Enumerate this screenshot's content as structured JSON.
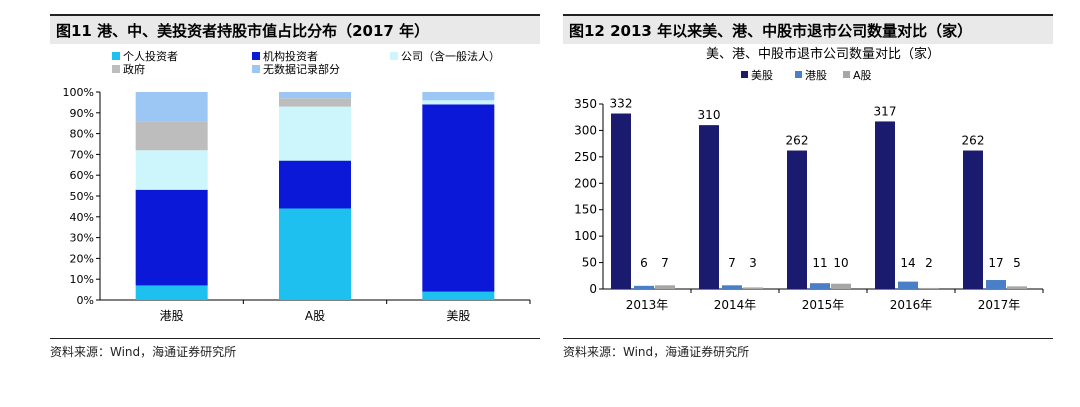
{
  "panel1": {
    "title": "图11 港、中、美投资者持股市值占比分布（2017 年）",
    "source": "资料来源：Wind，海通证券研究所"
  },
  "panel2": {
    "title": "图12 2013 年以来美、港、中股市退市公司数量对比（家）",
    "source": "资料来源：Wind，海通证券研究所"
  },
  "chart_data": [
    {
      "type": "bar",
      "stacked": true,
      "title": "",
      "categories": [
        "港股",
        "A股",
        "美股"
      ],
      "ylim": [
        0,
        100
      ],
      "yticks": [
        "0%",
        "10%",
        "20%",
        "30%",
        "40%",
        "50%",
        "60%",
        "70%",
        "80%",
        "90%",
        "100%"
      ],
      "legend_position": "top",
      "series": [
        {
          "name": "个人投资者",
          "color": "#1ec0f0",
          "values": [
            7,
            44,
            4
          ]
        },
        {
          "name": "机构投资者",
          "color": "#0b18d8",
          "values": [
            46,
            23,
            90
          ]
        },
        {
          "name": "公司（含一般法人）",
          "color": "#ccf6fb",
          "values": [
            19,
            26,
            2
          ]
        },
        {
          "name": "政府",
          "color": "#bdbdbd",
          "values": [
            14,
            4,
            0
          ]
        },
        {
          "name": "无数据记录部分",
          "color": "#9cc7f4",
          "values": [
            14,
            3,
            4
          ]
        }
      ]
    },
    {
      "type": "bar",
      "title": "美、港、中股市退市公司数量对比（家）",
      "categories": [
        "2013年",
        "2014年",
        "2015年",
        "2016年",
        "2017年"
      ],
      "ylim": [
        0,
        350
      ],
      "yticks": [
        "0",
        "50",
        "100",
        "150",
        "200",
        "250",
        "300",
        "350"
      ],
      "legend_position": "top",
      "series": [
        {
          "name": "美股",
          "color": "#1a1a6e",
          "values": [
            332,
            310,
            262,
            317,
            262
          ]
        },
        {
          "name": "港股",
          "color": "#4a7fc8",
          "values": [
            6,
            7,
            11,
            14,
            17
          ]
        },
        {
          "name": "A股",
          "color": "#a6a6a6",
          "values": [
            7,
            3,
            10,
            2,
            5
          ]
        }
      ],
      "data_labels": [
        [
          "332",
          "6",
          "7"
        ],
        [
          "310",
          "7",
          "3"
        ],
        [
          "262",
          "11",
          "10"
        ],
        [
          "317",
          "14",
          "2"
        ],
        [
          "262",
          "17",
          "5"
        ]
      ]
    }
  ]
}
